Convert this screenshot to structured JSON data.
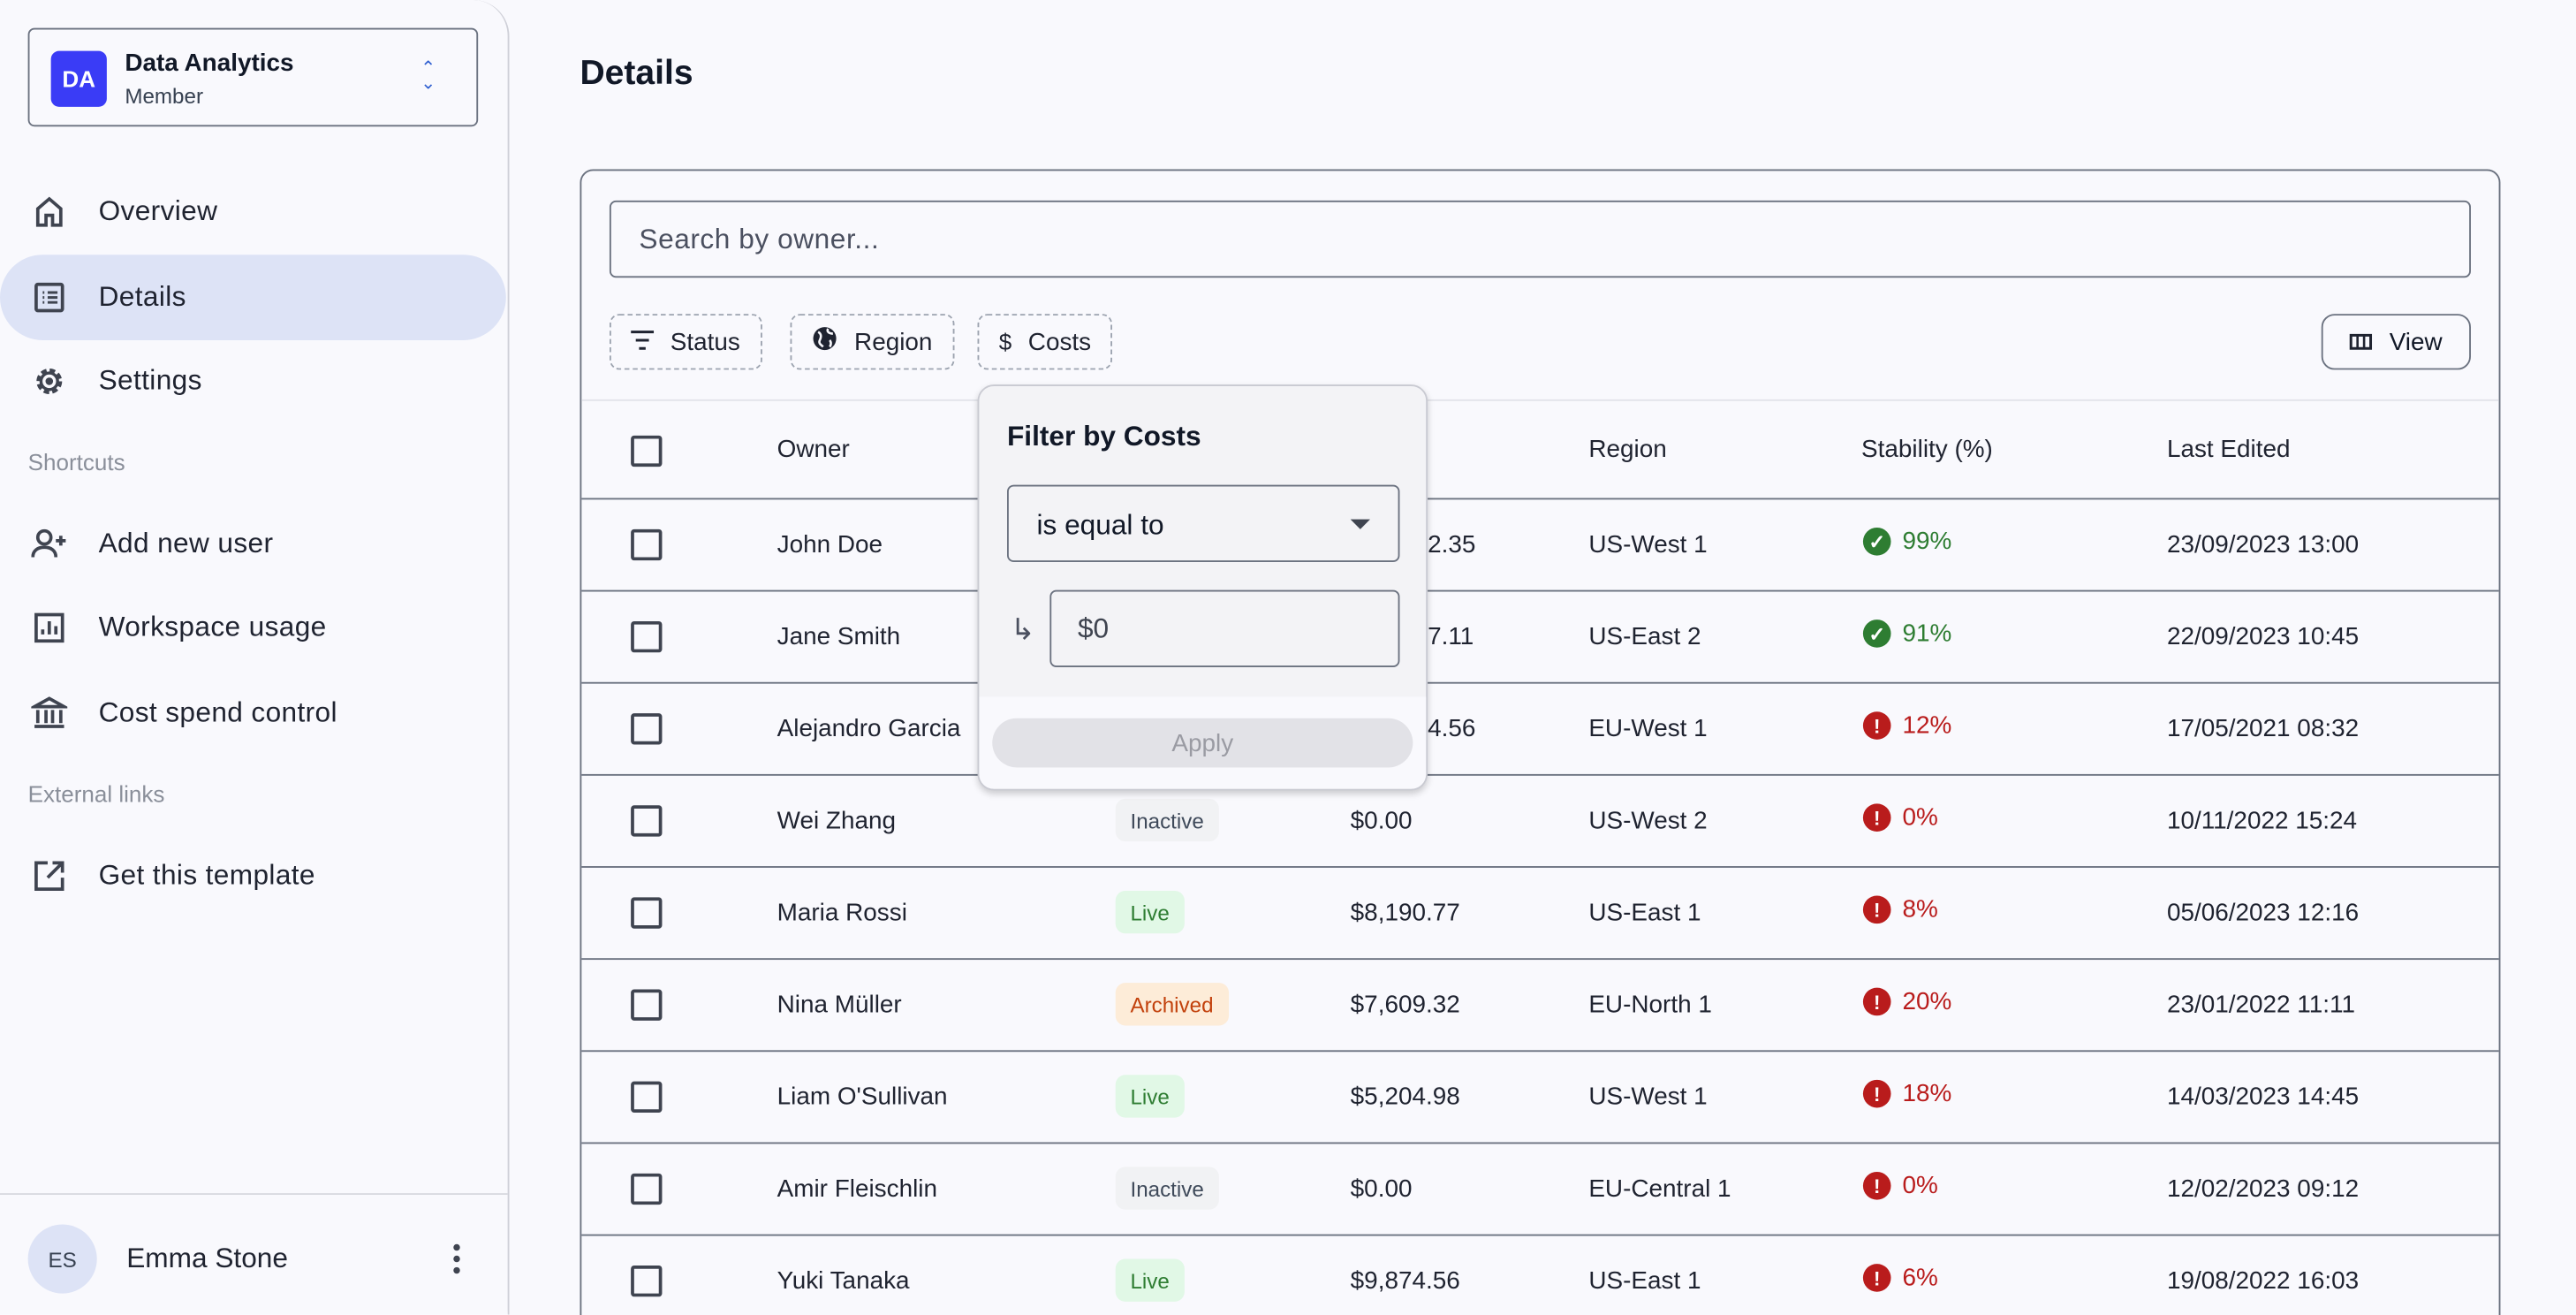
{
  "workspace": {
    "initials": "DA",
    "name": "Data Analytics",
    "role": "Member",
    "logo_color": "#3a3cf6"
  },
  "nav": [
    {
      "label": "Overview",
      "icon": "home-icon"
    },
    {
      "label": "Details",
      "icon": "list-icon",
      "active": true
    },
    {
      "label": "Settings",
      "icon": "gear-icon"
    }
  ],
  "shortcuts": {
    "heading": "Shortcuts",
    "items": [
      {
        "label": "Add new user",
        "icon": "add-user-icon"
      },
      {
        "label": "Workspace usage",
        "icon": "chart-icon"
      },
      {
        "label": "Cost spend control",
        "icon": "bank-icon"
      }
    ]
  },
  "external": {
    "heading": "External links",
    "items": [
      {
        "label": "Get this template",
        "icon": "external-link-icon"
      }
    ]
  },
  "user": {
    "initials": "ES",
    "name": "Emma Stone"
  },
  "page": {
    "title": "Details"
  },
  "toolbar": {
    "search_placeholder": "Search by owner...",
    "filters": [
      "Status",
      "Region",
      "Costs"
    ],
    "view_label": "View"
  },
  "table": {
    "columns": [
      "Owner",
      "",
      "",
      "Region",
      "Stability (%)",
      "Last Edited"
    ],
    "rows": [
      {
        "owner": "John Doe",
        "status": "",
        "cost": "2.35",
        "region": "US-West 1",
        "stability": "99%",
        "ok": true,
        "edited": "23/09/2023 13:00"
      },
      {
        "owner": "Jane Smith",
        "status": "",
        "cost": "7.11",
        "region": "US-East 2",
        "stability": "91%",
        "ok": true,
        "edited": "22/09/2023 10:45"
      },
      {
        "owner": "Alejandro Garcia",
        "status": "",
        "cost": "4.56",
        "region": "EU-West 1",
        "stability": "12%",
        "ok": false,
        "edited": "17/05/2021 08:32"
      },
      {
        "owner": "Wei Zhang",
        "status": "Inactive",
        "cost": "$0.00",
        "region": "US-West 2",
        "stability": "0%",
        "ok": false,
        "edited": "10/11/2022 15:24"
      },
      {
        "owner": "Maria Rossi",
        "status": "Live",
        "cost": "$8,190.77",
        "region": "US-East 1",
        "stability": "8%",
        "ok": false,
        "edited": "05/06/2023 12:16"
      },
      {
        "owner": "Nina Müller",
        "status": "Archived",
        "cost": "$7,609.32",
        "region": "EU-North 1",
        "stability": "20%",
        "ok": false,
        "edited": "23/01/2022 11:11"
      },
      {
        "owner": "Liam O'Sullivan",
        "status": "Live",
        "cost": "$5,204.98",
        "region": "US-West 1",
        "stability": "18%",
        "ok": false,
        "edited": "14/03/2023 14:45"
      },
      {
        "owner": "Amir Fleischlin",
        "status": "Inactive",
        "cost": "$0.00",
        "region": "EU-Central 1",
        "stability": "0%",
        "ok": false,
        "edited": "12/02/2023 09:12"
      },
      {
        "owner": "Yuki Tanaka",
        "status": "Live",
        "cost": "$9,874.56",
        "region": "US-East 1",
        "stability": "6%",
        "ok": false,
        "edited": "19/08/2022 16:03"
      }
    ]
  },
  "status_colors": {
    "Live": {
      "bg": "#e1f8e6",
      "fg": "#2e7d32"
    },
    "Inactive": {
      "bg": "#f1f2f4",
      "fg": "#3f4a5a"
    },
    "Archived": {
      "bg": "#fdecd8",
      "fg": "#c2410c"
    }
  },
  "stability_colors": {
    "ok": "#2e7d32",
    "bad": "#b91c1c"
  },
  "popover": {
    "title": "Filter by Costs",
    "operator": "is equal to",
    "value": "$0",
    "apply_label": "Apply"
  }
}
